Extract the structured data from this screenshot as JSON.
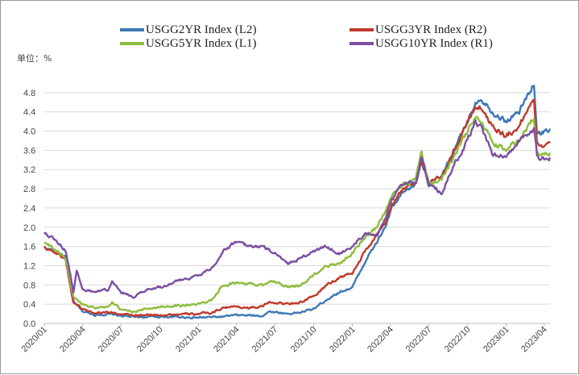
{
  "chart_data": {
    "type": "line",
    "unit_label": "单位：%",
    "y_ticks": [
      "4.8",
      "4.4",
      "4.0",
      "3.6",
      "3.2",
      "2.8",
      "2.4",
      "2.0",
      "1.6",
      "1.2",
      "0.8",
      "0.4",
      "0.0"
    ],
    "ylim": [
      0,
      5.2
    ],
    "x_ticks": [
      "2020/01",
      "2020/04",
      "2020/07",
      "2020/10",
      "2021/01",
      "2021/04",
      "2021/07",
      "2021/10",
      "2022/01",
      "2022/04",
      "2022/07",
      "2022/10",
      "2023/01",
      "2023/04"
    ],
    "xlim": [
      "2020-01-01",
      "2023-04-15"
    ],
    "grid": true,
    "legend_position": "top",
    "series": [
      {
        "name": "USGG2YR Index (L2)",
        "color": "#3e78b5",
        "points": [
          [
            "2020-01-01",
            1.57
          ],
          [
            "2020-02-01",
            1.5
          ],
          [
            "2020-02-21",
            1.38
          ],
          [
            "2020-03-05",
            0.7
          ],
          [
            "2020-03-10",
            0.45
          ],
          [
            "2020-04-01",
            0.25
          ],
          [
            "2020-05-01",
            0.18
          ],
          [
            "2020-06-01",
            0.19
          ],
          [
            "2020-07-01",
            0.16
          ],
          [
            "2020-08-01",
            0.13
          ],
          [
            "2020-10-01",
            0.14
          ],
          [
            "2020-12-01",
            0.13
          ],
          [
            "2021-01-01",
            0.12
          ],
          [
            "2021-03-01",
            0.14
          ],
          [
            "2021-04-01",
            0.17
          ],
          [
            "2021-06-01",
            0.16
          ],
          [
            "2021-06-20",
            0.25
          ],
          [
            "2021-08-01",
            0.2
          ],
          [
            "2021-09-01",
            0.23
          ],
          [
            "2021-10-01",
            0.3
          ],
          [
            "2021-11-01",
            0.5
          ],
          [
            "2021-12-01",
            0.65
          ],
          [
            "2022-01-01",
            0.75
          ],
          [
            "2022-02-01",
            1.3
          ],
          [
            "2022-03-01",
            1.7
          ],
          [
            "2022-03-20",
            2.0
          ],
          [
            "2022-04-05",
            2.4
          ],
          [
            "2022-05-01",
            2.7
          ],
          [
            "2022-06-01",
            2.9
          ],
          [
            "2022-06-14",
            3.4
          ],
          [
            "2022-07-01",
            2.9
          ],
          [
            "2022-08-01",
            3.05
          ],
          [
            "2022-09-01",
            3.6
          ],
          [
            "2022-10-01",
            4.2
          ],
          [
            "2022-10-20",
            4.6
          ],
          [
            "2022-11-01",
            4.7
          ],
          [
            "2022-12-01",
            4.4
          ],
          [
            "2023-01-01",
            4.2
          ],
          [
            "2023-02-01",
            4.4
          ],
          [
            "2023-03-08",
            5.0
          ],
          [
            "2023-03-15",
            4.0
          ],
          [
            "2023-03-25",
            3.95
          ],
          [
            "2023-04-15",
            4.05
          ]
        ]
      },
      {
        "name": "USGG3YR Index (R2)",
        "color": "#c0392b",
        "points": [
          [
            "2020-01-01",
            1.6
          ],
          [
            "2020-02-01",
            1.45
          ],
          [
            "2020-02-21",
            1.32
          ],
          [
            "2020-03-05",
            0.65
          ],
          [
            "2020-03-10",
            0.45
          ],
          [
            "2020-04-01",
            0.3
          ],
          [
            "2020-05-01",
            0.22
          ],
          [
            "2020-06-01",
            0.24
          ],
          [
            "2020-07-01",
            0.19
          ],
          [
            "2020-08-01",
            0.16
          ],
          [
            "2020-10-01",
            0.18
          ],
          [
            "2020-12-01",
            0.19
          ],
          [
            "2021-01-01",
            0.2
          ],
          [
            "2021-02-01",
            0.22
          ],
          [
            "2021-03-01",
            0.33
          ],
          [
            "2021-04-01",
            0.35
          ],
          [
            "2021-05-01",
            0.32
          ],
          [
            "2021-06-01",
            0.35
          ],
          [
            "2021-06-20",
            0.45
          ],
          [
            "2021-08-01",
            0.4
          ],
          [
            "2021-09-01",
            0.45
          ],
          [
            "2021-10-01",
            0.55
          ],
          [
            "2021-11-01",
            0.8
          ],
          [
            "2021-12-01",
            0.95
          ],
          [
            "2022-01-01",
            1.05
          ],
          [
            "2022-02-01",
            1.5
          ],
          [
            "2022-03-01",
            1.85
          ],
          [
            "2022-03-20",
            2.1
          ],
          [
            "2022-04-05",
            2.5
          ],
          [
            "2022-05-01",
            2.8
          ],
          [
            "2022-06-01",
            2.95
          ],
          [
            "2022-06-14",
            3.4
          ],
          [
            "2022-07-01",
            2.9
          ],
          [
            "2022-08-01",
            3.05
          ],
          [
            "2022-09-01",
            3.6
          ],
          [
            "2022-10-01",
            4.2
          ],
          [
            "2022-10-20",
            4.5
          ],
          [
            "2022-11-01",
            4.5
          ],
          [
            "2022-12-01",
            4.1
          ],
          [
            "2023-01-01",
            3.9
          ],
          [
            "2023-02-01",
            4.1
          ],
          [
            "2023-03-08",
            4.7
          ],
          [
            "2023-03-15",
            3.8
          ],
          [
            "2023-03-25",
            3.7
          ],
          [
            "2023-04-15",
            3.75
          ]
        ]
      },
      {
        "name": "USGG5YR Index (L1)",
        "color": "#8dbd3c",
        "points": [
          [
            "2020-01-01",
            1.68
          ],
          [
            "2020-02-01",
            1.5
          ],
          [
            "2020-02-21",
            1.35
          ],
          [
            "2020-03-05",
            0.75
          ],
          [
            "2020-03-10",
            0.55
          ],
          [
            "2020-04-01",
            0.4
          ],
          [
            "2020-05-01",
            0.33
          ],
          [
            "2020-06-01",
            0.35
          ],
          [
            "2020-06-10",
            0.45
          ],
          [
            "2020-07-01",
            0.28
          ],
          [
            "2020-08-01",
            0.25
          ],
          [
            "2020-10-01",
            0.35
          ],
          [
            "2020-12-01",
            0.38
          ],
          [
            "2021-01-01",
            0.4
          ],
          [
            "2021-02-01",
            0.5
          ],
          [
            "2021-03-01",
            0.8
          ],
          [
            "2021-04-01",
            0.85
          ],
          [
            "2021-05-01",
            0.82
          ],
          [
            "2021-06-01",
            0.8
          ],
          [
            "2021-06-20",
            0.9
          ],
          [
            "2021-08-01",
            0.75
          ],
          [
            "2021-09-01",
            0.8
          ],
          [
            "2021-10-01",
            1.0
          ],
          [
            "2021-11-01",
            1.2
          ],
          [
            "2021-12-01",
            1.25
          ],
          [
            "2022-01-01",
            1.45
          ],
          [
            "2022-02-01",
            1.8
          ],
          [
            "2022-03-01",
            2.0
          ],
          [
            "2022-03-20",
            2.3
          ],
          [
            "2022-04-05",
            2.65
          ],
          [
            "2022-05-01",
            2.9
          ],
          [
            "2022-06-01",
            3.0
          ],
          [
            "2022-06-14",
            3.55
          ],
          [
            "2022-07-01",
            2.9
          ],
          [
            "2022-08-01",
            3.0
          ],
          [
            "2022-09-01",
            3.5
          ],
          [
            "2022-10-01",
            4.0
          ],
          [
            "2022-10-20",
            4.3
          ],
          [
            "2022-11-01",
            4.2
          ],
          [
            "2022-12-01",
            3.75
          ],
          [
            "2023-01-01",
            3.6
          ],
          [
            "2023-02-01",
            3.8
          ],
          [
            "2023-03-08",
            4.3
          ],
          [
            "2023-03-15",
            3.55
          ],
          [
            "2023-03-25",
            3.5
          ],
          [
            "2023-04-15",
            3.55
          ]
        ]
      },
      {
        "name": "USGG10YR Index (R1)",
        "color": "#7b4fa3",
        "points": [
          [
            "2020-01-01",
            1.9
          ],
          [
            "2020-02-01",
            1.7
          ],
          [
            "2020-02-21",
            1.5
          ],
          [
            "2020-03-05",
            0.9
          ],
          [
            "2020-03-10",
            0.65
          ],
          [
            "2020-03-18",
            1.1
          ],
          [
            "2020-04-01",
            0.7
          ],
          [
            "2020-05-01",
            0.65
          ],
          [
            "2020-06-01",
            0.7
          ],
          [
            "2020-06-10",
            0.85
          ],
          [
            "2020-07-01",
            0.65
          ],
          [
            "2020-08-01",
            0.55
          ],
          [
            "2020-09-01",
            0.7
          ],
          [
            "2020-10-01",
            0.75
          ],
          [
            "2020-11-01",
            0.85
          ],
          [
            "2020-12-01",
            0.93
          ],
          [
            "2021-01-01",
            1.0
          ],
          [
            "2021-02-01",
            1.15
          ],
          [
            "2021-03-01",
            1.5
          ],
          [
            "2021-04-01",
            1.7
          ],
          [
            "2021-05-01",
            1.6
          ],
          [
            "2021-06-01",
            1.6
          ],
          [
            "2021-07-01",
            1.45
          ],
          [
            "2021-08-01",
            1.25
          ],
          [
            "2021-09-01",
            1.35
          ],
          [
            "2021-10-01",
            1.5
          ],
          [
            "2021-11-01",
            1.6
          ],
          [
            "2021-12-01",
            1.45
          ],
          [
            "2022-01-01",
            1.6
          ],
          [
            "2022-02-01",
            1.9
          ],
          [
            "2022-03-01",
            1.85
          ],
          [
            "2022-03-20",
            2.2
          ],
          [
            "2022-04-05",
            2.55
          ],
          [
            "2022-05-01",
            2.9
          ],
          [
            "2022-06-01",
            2.95
          ],
          [
            "2022-06-14",
            3.45
          ],
          [
            "2022-07-01",
            2.9
          ],
          [
            "2022-08-01",
            2.7
          ],
          [
            "2022-09-01",
            3.3
          ],
          [
            "2022-10-01",
            3.8
          ],
          [
            "2022-10-20",
            4.2
          ],
          [
            "2022-11-01",
            4.1
          ],
          [
            "2022-12-01",
            3.5
          ],
          [
            "2023-01-01",
            3.5
          ],
          [
            "2023-02-01",
            3.8
          ],
          [
            "2023-03-08",
            4.05
          ],
          [
            "2023-03-15",
            3.5
          ],
          [
            "2023-03-25",
            3.4
          ],
          [
            "2023-04-15",
            3.45
          ]
        ]
      }
    ]
  }
}
